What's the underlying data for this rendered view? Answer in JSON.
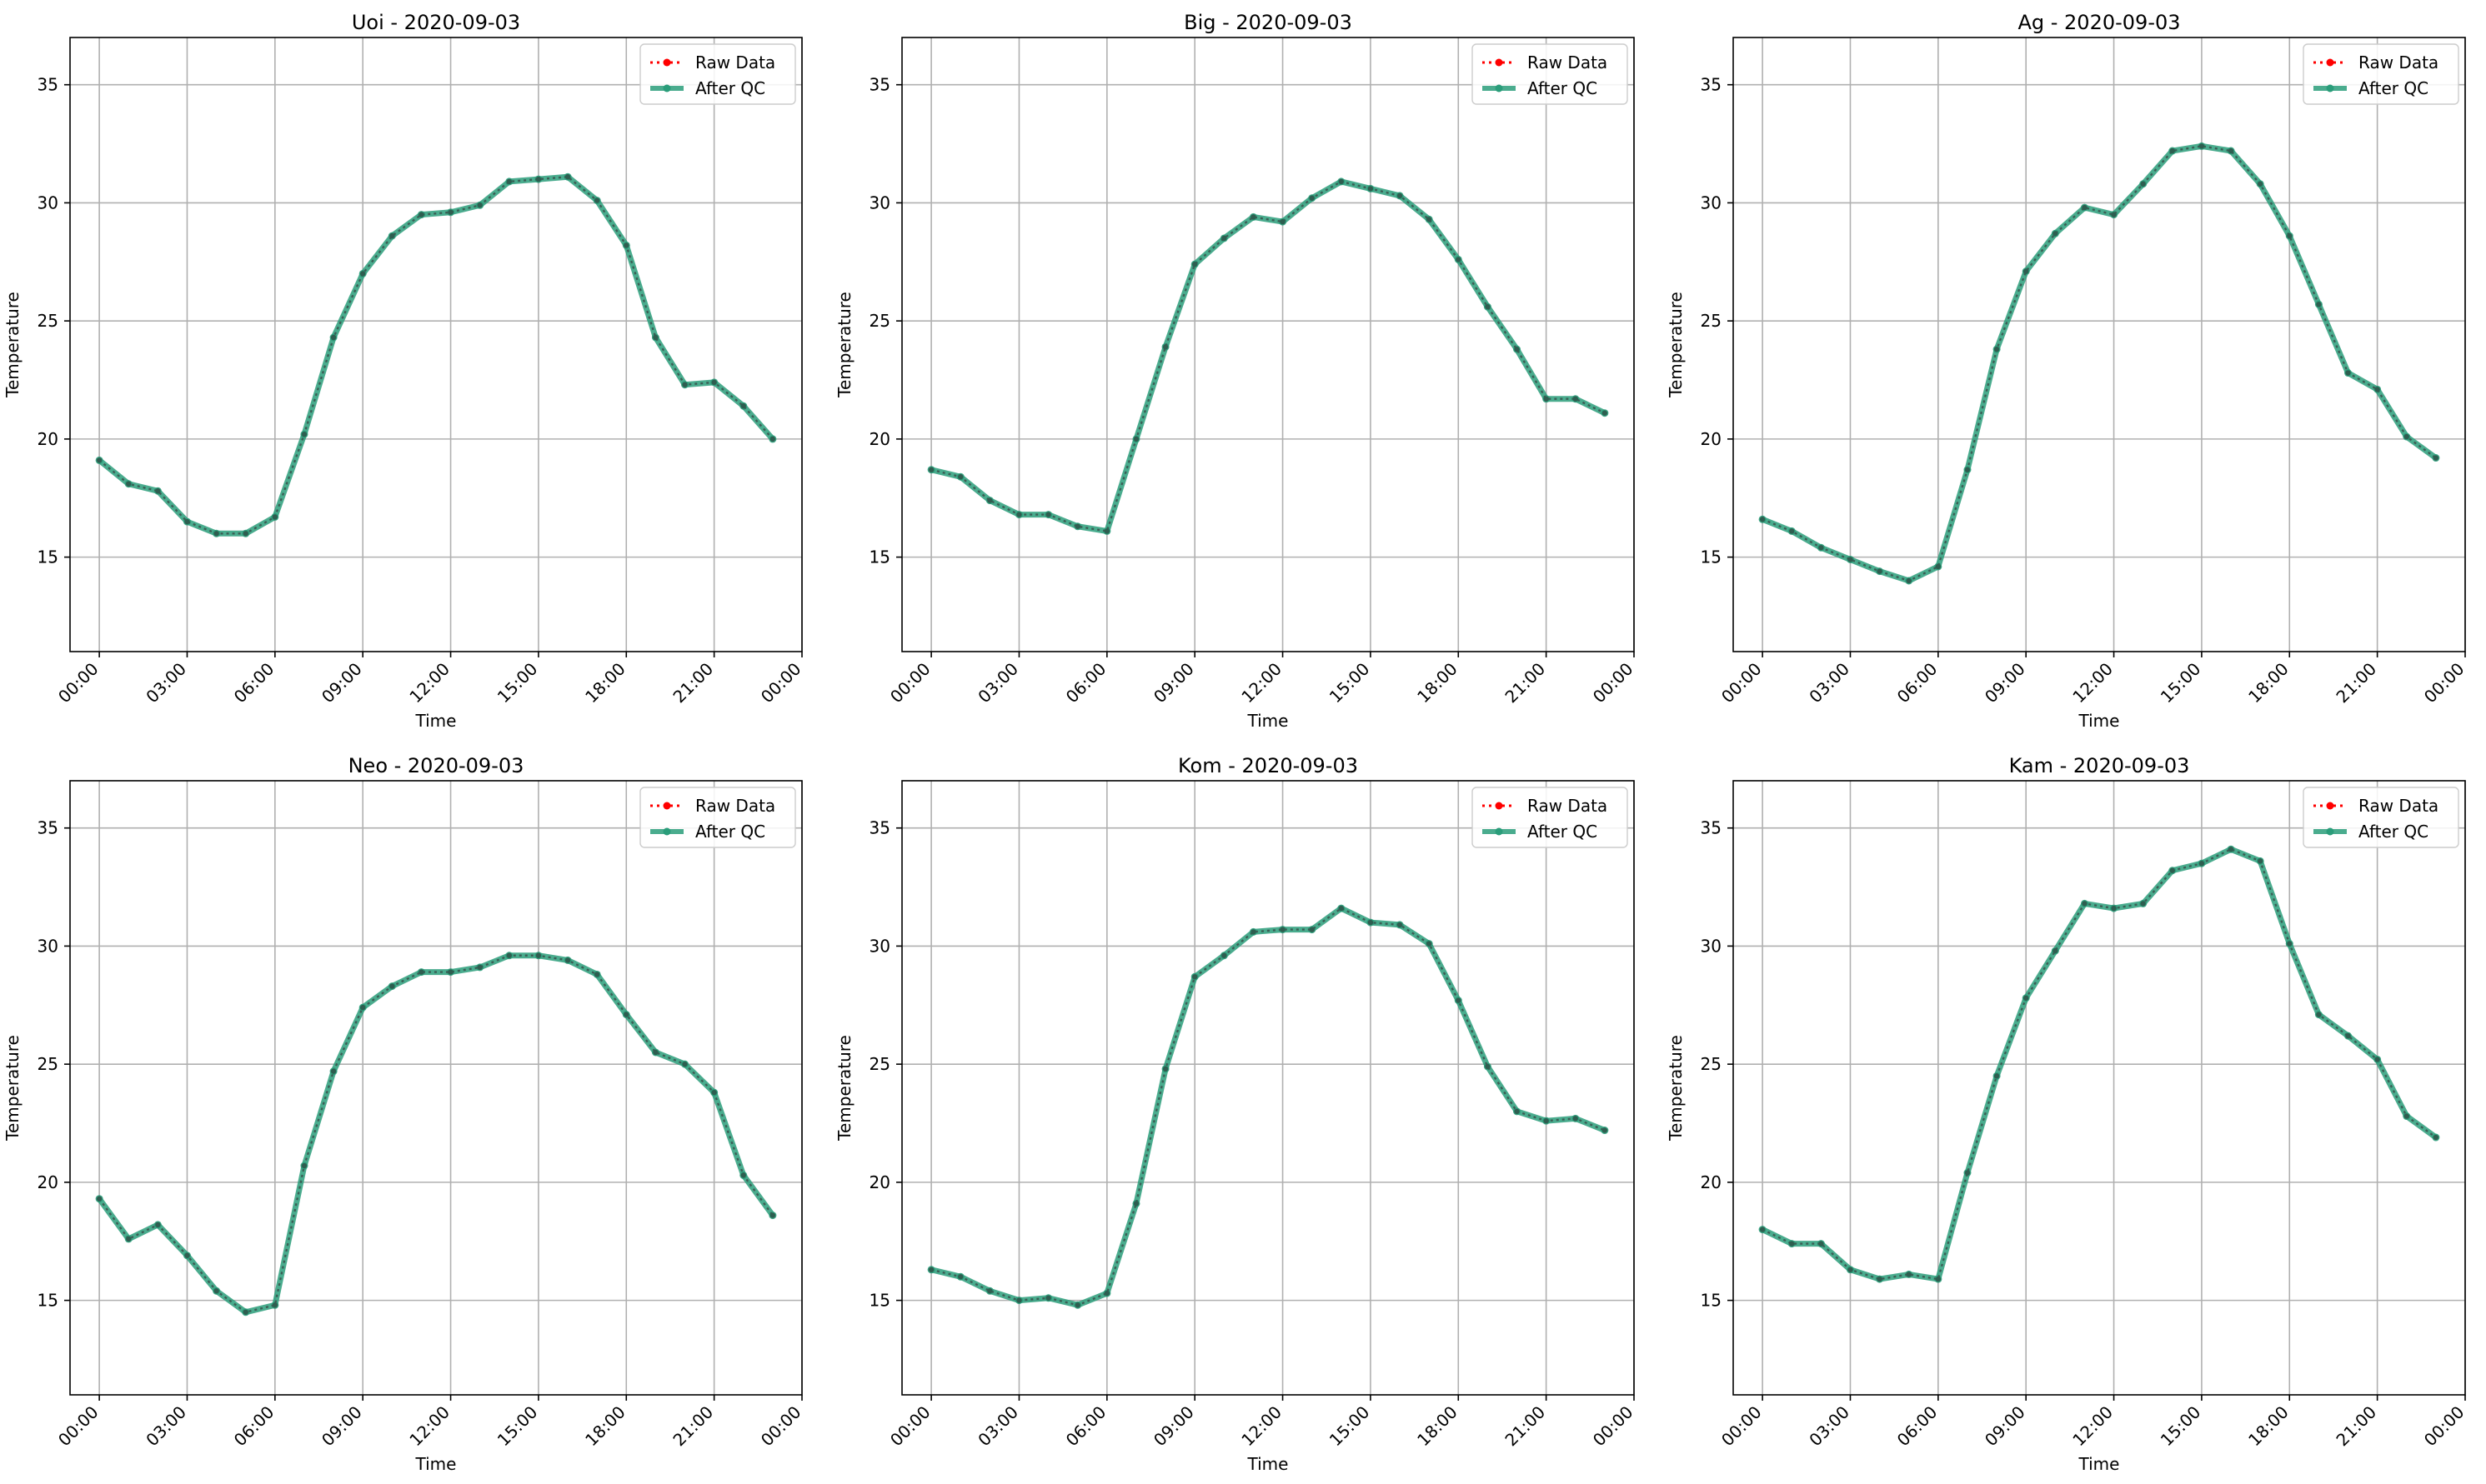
{
  "colors": {
    "raw": "#ff0000",
    "qc": "#2a9d7a",
    "grid": "#b0b0b0",
    "axis": "#000000"
  },
  "chart_data": [
    {
      "type": "line",
      "title": "Uoi - 2020-09-03",
      "xlabel": "Time",
      "ylabel": "Temperature",
      "xlim": [
        -1,
        24
      ],
      "ylim": [
        11,
        37
      ],
      "xticks": [
        0,
        3,
        6,
        9,
        12,
        15,
        18,
        21,
        24
      ],
      "xtick_labels": [
        "00:00",
        "03:00",
        "06:00",
        "09:00",
        "12:00",
        "15:00",
        "18:00",
        "21:00",
        "00:00"
      ],
      "yticks": [
        15,
        20,
        25,
        30,
        35
      ],
      "ytick_labels": [
        "15",
        "20",
        "25",
        "30",
        "35"
      ],
      "grid": true,
      "legend": "top-right",
      "series": [
        {
          "name": "Raw Data",
          "x": [
            0,
            1,
            2,
            3,
            4,
            5,
            6,
            7,
            8,
            9,
            10,
            11,
            12,
            13,
            14,
            15,
            16,
            17,
            18,
            19,
            20,
            21,
            22,
            23
          ],
          "values": [
            19.1,
            18.1,
            17.8,
            16.5,
            16.0,
            16.0,
            16.7,
            20.2,
            24.3,
            27.0,
            28.6,
            29.5,
            29.6,
            29.9,
            30.9,
            31.0,
            31.1,
            30.1,
            28.2,
            24.3,
            22.3,
            22.4,
            21.4,
            20.0
          ]
        },
        {
          "name": "After QC",
          "x": [
            0,
            1,
            2,
            3,
            4,
            5,
            6,
            7,
            8,
            9,
            10,
            11,
            12,
            13,
            14,
            15,
            16,
            17,
            18,
            19,
            20,
            21,
            22,
            23
          ],
          "values": [
            19.1,
            18.1,
            17.8,
            16.5,
            16.0,
            16.0,
            16.7,
            20.2,
            24.3,
            27.0,
            28.6,
            29.5,
            29.6,
            29.9,
            30.9,
            31.0,
            31.1,
            30.1,
            28.2,
            24.3,
            22.3,
            22.4,
            21.4,
            20.0
          ]
        }
      ]
    },
    {
      "type": "line",
      "title": "Big - 2020-09-03",
      "xlabel": "Time",
      "ylabel": "Temperature",
      "xlim": [
        -1,
        24
      ],
      "ylim": [
        11,
        37
      ],
      "xticks": [
        0,
        3,
        6,
        9,
        12,
        15,
        18,
        21,
        24
      ],
      "xtick_labels": [
        "00:00",
        "03:00",
        "06:00",
        "09:00",
        "12:00",
        "15:00",
        "18:00",
        "21:00",
        "00:00"
      ],
      "yticks": [
        15,
        20,
        25,
        30,
        35
      ],
      "ytick_labels": [
        "15",
        "20",
        "25",
        "30",
        "35"
      ],
      "grid": true,
      "legend": "top-right",
      "series": [
        {
          "name": "Raw Data",
          "x": [
            0,
            1,
            2,
            3,
            4,
            5,
            6,
            7,
            8,
            9,
            10,
            11,
            12,
            13,
            14,
            15,
            16,
            17,
            18,
            19,
            20,
            21,
            22,
            23
          ],
          "values": [
            18.7,
            18.4,
            17.4,
            16.8,
            16.8,
            16.3,
            16.1,
            20.0,
            23.9,
            27.4,
            28.5,
            29.4,
            29.2,
            30.2,
            30.9,
            30.6,
            30.3,
            29.3,
            27.6,
            25.6,
            23.8,
            21.7,
            21.7,
            21.1
          ]
        },
        {
          "name": "After QC",
          "x": [
            0,
            1,
            2,
            3,
            4,
            5,
            6,
            7,
            8,
            9,
            10,
            11,
            12,
            13,
            14,
            15,
            16,
            17,
            18,
            19,
            20,
            21,
            22,
            23
          ],
          "values": [
            18.7,
            18.4,
            17.4,
            16.8,
            16.8,
            16.3,
            16.1,
            20.0,
            23.9,
            27.4,
            28.5,
            29.4,
            29.2,
            30.2,
            30.9,
            30.6,
            30.3,
            29.3,
            27.6,
            25.6,
            23.8,
            21.7,
            21.7,
            21.1
          ]
        }
      ]
    },
    {
      "type": "line",
      "title": "Ag - 2020-09-03",
      "xlabel": "Time",
      "ylabel": "Temperature",
      "xlim": [
        -1,
        24
      ],
      "ylim": [
        11,
        37
      ],
      "xticks": [
        0,
        3,
        6,
        9,
        12,
        15,
        18,
        21,
        24
      ],
      "xtick_labels": [
        "00:00",
        "03:00",
        "06:00",
        "09:00",
        "12:00",
        "15:00",
        "18:00",
        "21:00",
        "00:00"
      ],
      "yticks": [
        15,
        20,
        25,
        30,
        35
      ],
      "ytick_labels": [
        "15",
        "20",
        "25",
        "30",
        "35"
      ],
      "grid": true,
      "legend": "top-right",
      "series": [
        {
          "name": "Raw Data",
          "x": [
            0,
            1,
            2,
            3,
            4,
            5,
            6,
            7,
            8,
            9,
            10,
            11,
            12,
            13,
            14,
            15,
            16,
            17,
            18,
            19,
            20,
            21,
            22,
            23
          ],
          "values": [
            16.6,
            16.1,
            15.4,
            14.9,
            14.4,
            14.0,
            14.6,
            18.7,
            23.8,
            27.1,
            28.7,
            29.8,
            29.5,
            30.8,
            32.2,
            32.4,
            32.2,
            30.8,
            28.6,
            25.7,
            22.8,
            22.1,
            20.1,
            19.2
          ]
        },
        {
          "name": "After QC",
          "x": [
            0,
            1,
            2,
            3,
            4,
            5,
            6,
            7,
            8,
            9,
            10,
            11,
            12,
            13,
            14,
            15,
            16,
            17,
            18,
            19,
            20,
            21,
            22,
            23
          ],
          "values": [
            16.6,
            16.1,
            15.4,
            14.9,
            14.4,
            14.0,
            14.6,
            18.7,
            23.8,
            27.1,
            28.7,
            29.8,
            29.5,
            30.8,
            32.2,
            32.4,
            32.2,
            30.8,
            28.6,
            25.7,
            22.8,
            22.1,
            20.1,
            19.2
          ]
        }
      ]
    },
    {
      "type": "line",
      "title": "Neo - 2020-09-03",
      "xlabel": "Time",
      "ylabel": "Temperature",
      "xlim": [
        -1,
        24
      ],
      "ylim": [
        11,
        37
      ],
      "xticks": [
        0,
        3,
        6,
        9,
        12,
        15,
        18,
        21,
        24
      ],
      "xtick_labels": [
        "00:00",
        "03:00",
        "06:00",
        "09:00",
        "12:00",
        "15:00",
        "18:00",
        "21:00",
        "00:00"
      ],
      "yticks": [
        15,
        20,
        25,
        30,
        35
      ],
      "ytick_labels": [
        "15",
        "20",
        "25",
        "30",
        "35"
      ],
      "grid": true,
      "legend": "top-right",
      "series": [
        {
          "name": "Raw Data",
          "x": [
            0,
            1,
            2,
            3,
            4,
            5,
            6,
            7,
            8,
            9,
            10,
            11,
            12,
            13,
            14,
            15,
            16,
            17,
            18,
            19,
            20,
            21,
            22,
            23
          ],
          "values": [
            19.3,
            17.6,
            18.2,
            16.9,
            15.4,
            14.5,
            14.8,
            20.7,
            24.7,
            27.4,
            28.3,
            28.9,
            28.9,
            29.1,
            29.6,
            29.6,
            29.4,
            28.8,
            27.1,
            25.5,
            25.0,
            23.8,
            20.3,
            18.6
          ]
        },
        {
          "name": "After QC",
          "x": [
            0,
            1,
            2,
            3,
            4,
            5,
            6,
            7,
            8,
            9,
            10,
            11,
            12,
            13,
            14,
            15,
            16,
            17,
            18,
            19,
            20,
            21,
            22,
            23
          ],
          "values": [
            19.3,
            17.6,
            18.2,
            16.9,
            15.4,
            14.5,
            14.8,
            20.7,
            24.7,
            27.4,
            28.3,
            28.9,
            28.9,
            29.1,
            29.6,
            29.6,
            29.4,
            28.8,
            27.1,
            25.5,
            25.0,
            23.8,
            20.3,
            18.6
          ]
        }
      ]
    },
    {
      "type": "line",
      "title": "Kom - 2020-09-03",
      "xlabel": "Time",
      "ylabel": "Temperature",
      "xlim": [
        -1,
        24
      ],
      "ylim": [
        11,
        37
      ],
      "xticks": [
        0,
        3,
        6,
        9,
        12,
        15,
        18,
        21,
        24
      ],
      "xtick_labels": [
        "00:00",
        "03:00",
        "06:00",
        "09:00",
        "12:00",
        "15:00",
        "18:00",
        "21:00",
        "00:00"
      ],
      "yticks": [
        15,
        20,
        25,
        30,
        35
      ],
      "ytick_labels": [
        "15",
        "20",
        "25",
        "30",
        "35"
      ],
      "grid": true,
      "legend": "top-right",
      "series": [
        {
          "name": "Raw Data",
          "x": [
            0,
            1,
            2,
            3,
            4,
            5,
            6,
            7,
            8,
            9,
            10,
            11,
            12,
            13,
            14,
            15,
            16,
            17,
            18,
            19,
            20,
            21,
            22,
            23
          ],
          "values": [
            16.3,
            16.0,
            15.4,
            15.0,
            15.1,
            14.8,
            15.3,
            19.1,
            24.8,
            28.7,
            29.6,
            30.6,
            30.7,
            30.7,
            31.6,
            31.0,
            30.9,
            30.1,
            27.7,
            24.9,
            23.0,
            22.6,
            22.7,
            22.2
          ]
        },
        {
          "name": "After QC",
          "x": [
            0,
            1,
            2,
            3,
            4,
            5,
            6,
            7,
            8,
            9,
            10,
            11,
            12,
            13,
            14,
            15,
            16,
            17,
            18,
            19,
            20,
            21,
            22,
            23
          ],
          "values": [
            16.3,
            16.0,
            15.4,
            15.0,
            15.1,
            14.8,
            15.3,
            19.1,
            24.8,
            28.7,
            29.6,
            30.6,
            30.7,
            30.7,
            31.6,
            31.0,
            30.9,
            30.1,
            27.7,
            24.9,
            23.0,
            22.6,
            22.7,
            22.2
          ]
        }
      ]
    },
    {
      "type": "line",
      "title": "Kam - 2020-09-03",
      "xlabel": "Time",
      "ylabel": "Temperature",
      "xlim": [
        -1,
        24
      ],
      "ylim": [
        11,
        37
      ],
      "xticks": [
        0,
        3,
        6,
        9,
        12,
        15,
        18,
        21,
        24
      ],
      "xtick_labels": [
        "00:00",
        "03:00",
        "06:00",
        "09:00",
        "12:00",
        "15:00",
        "18:00",
        "21:00",
        "00:00"
      ],
      "yticks": [
        15,
        20,
        25,
        30,
        35
      ],
      "ytick_labels": [
        "15",
        "20",
        "25",
        "30",
        "35"
      ],
      "grid": true,
      "legend": "top-right",
      "series": [
        {
          "name": "Raw Data",
          "x": [
            0,
            1,
            2,
            3,
            4,
            5,
            6,
            7,
            8,
            9,
            10,
            11,
            12,
            13,
            14,
            15,
            16,
            17,
            18,
            19,
            20,
            21,
            22,
            23
          ],
          "values": [
            18.0,
            17.4,
            17.4,
            16.3,
            15.9,
            16.1,
            15.9,
            20.4,
            24.5,
            27.8,
            29.8,
            31.8,
            31.6,
            31.8,
            33.2,
            33.5,
            34.1,
            33.6,
            30.1,
            27.1,
            26.2,
            25.2,
            22.8,
            21.9
          ]
        },
        {
          "name": "After QC",
          "x": [
            0,
            1,
            2,
            3,
            4,
            5,
            6,
            7,
            8,
            9,
            10,
            11,
            12,
            13,
            14,
            15,
            16,
            17,
            18,
            19,
            20,
            21,
            22,
            23
          ],
          "values": [
            18.0,
            17.4,
            17.4,
            16.3,
            15.9,
            16.1,
            15.9,
            20.4,
            24.5,
            27.8,
            29.8,
            31.8,
            31.6,
            31.8,
            33.2,
            33.5,
            34.1,
            33.6,
            30.1,
            27.1,
            26.2,
            25.2,
            22.8,
            21.9
          ]
        }
      ]
    }
  ]
}
